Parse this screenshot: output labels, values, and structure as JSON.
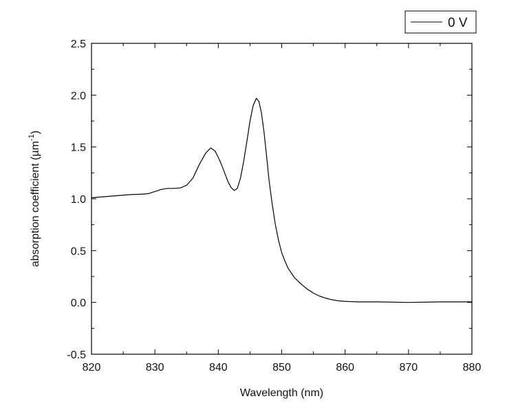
{
  "chart_data": {
    "type": "line",
    "title": "",
    "xlabel": "Wavelength (nm)",
    "ylabel": {
      "prefix": "absorption coefficient (µm",
      "superscript": "-1",
      "suffix": ")"
    },
    "xlim": [
      820,
      880
    ],
    "ylim": [
      -0.5,
      2.5
    ],
    "xticks": [
      820,
      830,
      840,
      850,
      860,
      870,
      880
    ],
    "yticks": [
      -0.5,
      0.0,
      0.5,
      1.0,
      1.5,
      2.0,
      2.5
    ],
    "xtick_labels": [
      "820",
      "830",
      "840",
      "850",
      "860",
      "870",
      "880"
    ],
    "ytick_labels": [
      "-0.5",
      "0.0",
      "0.5",
      "1.0",
      "1.5",
      "2.0",
      "2.5"
    ],
    "grid": false,
    "legend_position": "top-right-outside",
    "series": [
      {
        "name": "0 V",
        "color": "#000000",
        "x": [
          820,
          822,
          824,
          826,
          828,
          829,
          830,
          831,
          832,
          833,
          834,
          835,
          836,
          837,
          838,
          838.8,
          839.5,
          840,
          840.5,
          841,
          841.5,
          842,
          842.5,
          843,
          843.5,
          844,
          844.5,
          845,
          845.5,
          846,
          846.4,
          846.8,
          847.2,
          847.6,
          848,
          848.5,
          849,
          849.5,
          850,
          850.5,
          851,
          852,
          853,
          854,
          855,
          856,
          857,
          858,
          859,
          860,
          862,
          865,
          870,
          875,
          880
        ],
        "y": [
          1.01,
          1.02,
          1.03,
          1.04,
          1.045,
          1.05,
          1.07,
          1.09,
          1.1,
          1.1,
          1.105,
          1.13,
          1.2,
          1.33,
          1.44,
          1.49,
          1.46,
          1.4,
          1.33,
          1.25,
          1.17,
          1.11,
          1.08,
          1.1,
          1.2,
          1.36,
          1.55,
          1.75,
          1.9,
          1.97,
          1.94,
          1.83,
          1.65,
          1.42,
          1.18,
          0.95,
          0.75,
          0.6,
          0.48,
          0.4,
          0.33,
          0.24,
          0.18,
          0.13,
          0.09,
          0.06,
          0.04,
          0.025,
          0.015,
          0.01,
          0.005,
          0.005,
          0.0,
          0.005,
          0.005
        ]
      }
    ]
  }
}
